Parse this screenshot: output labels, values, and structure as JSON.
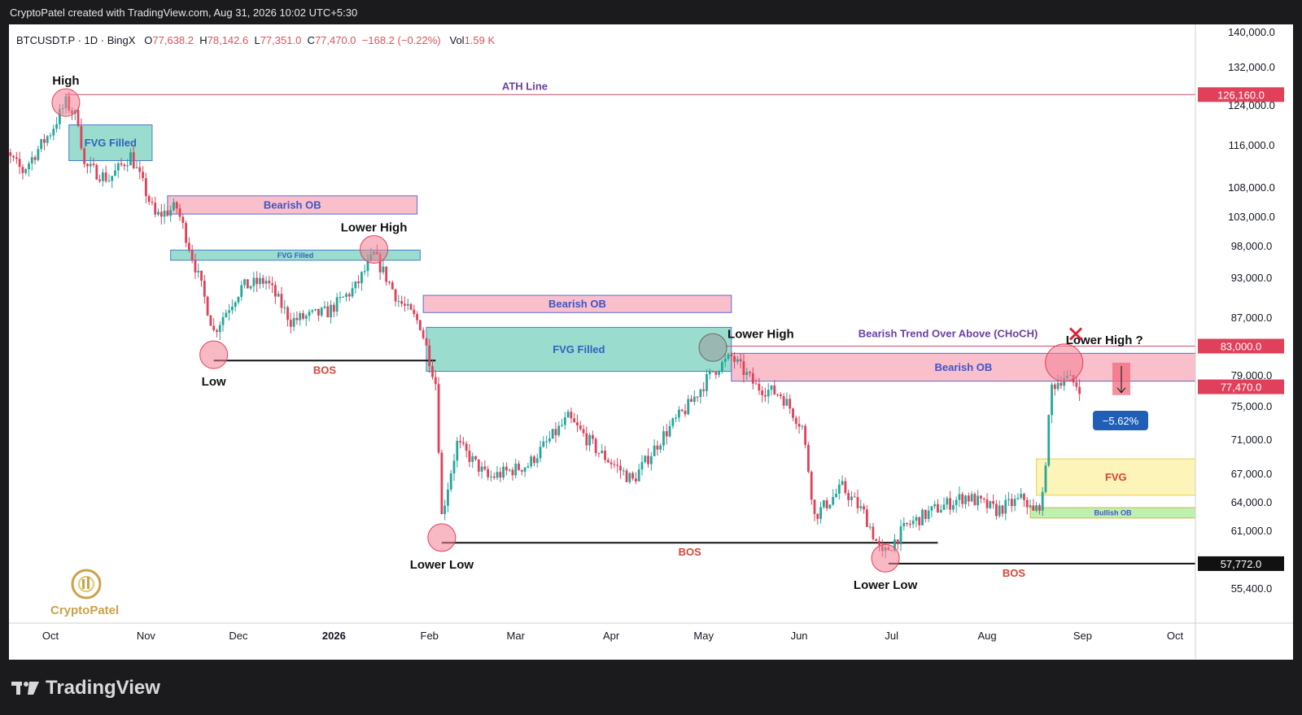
{
  "header": {
    "title": "CryptoPatel created with TradingView.com, Aug 31, 2026 10:02 UTC+5:30"
  },
  "legend": {
    "symbol": "BTCUSDT.P · 1D · BingX",
    "open_label": "O",
    "open": "77,638.2",
    "high_label": "H",
    "high": "78,142.6",
    "low_label": "L",
    "low": "77,351.0",
    "close_label": "C",
    "close": "77,470.0",
    "change": "−168.2 (−0.22%)",
    "vol_label": "Vol",
    "vol": "1.59 K"
  },
  "footer": {
    "brand": "TradingView"
  },
  "watermark": {
    "text": "CryptoPatel"
  },
  "colors": {
    "up": "#26a69a",
    "down": "#e0405a",
    "pink": "#f8b8c4",
    "teal": "#8fd8c8",
    "yellow": "#fcf3b0",
    "green": "#b6efa6",
    "purple": "#6b3fa0",
    "ath": "#d0506a"
  },
  "chart_data": {
    "type": "candlestick",
    "price_axis": {
      "ticks": [
        "140,000.0",
        "132,000.0",
        "124,000.0",
        "116,000.0",
        "108,000.0",
        "103,000.0",
        "98,000.0",
        "93,000.0",
        "87,000.0",
        "79,000.0",
        "75,000.0",
        "71,000.0",
        "67,000.0",
        "64,000.0",
        "61,000.0",
        "55,400.0"
      ],
      "tick_values": [
        140000,
        132000,
        124000,
        116000,
        108000,
        103000,
        98000,
        93000,
        87000,
        79000,
        75000,
        71000,
        67000,
        64000,
        61000,
        55400
      ],
      "price_labels": [
        {
          "text": "126,160.0",
          "value": 126160,
          "style": "red"
        },
        {
          "text": "83,000.0",
          "value": 83000,
          "style": "red"
        },
        {
          "text": "77,470.0",
          "value": 77470,
          "style": "red"
        },
        {
          "text": "57,772.0",
          "value": 57772,
          "style": "black"
        }
      ]
    },
    "time_axis": {
      "labels": [
        "Oct",
        "Nov",
        "Dec",
        "2026",
        "Feb",
        "Mar",
        "Apr",
        "May",
        "Jun",
        "Jul",
        "Aug",
        "Sep",
        "Oct"
      ],
      "dates": [
        "2025-10-01",
        "2025-11-01",
        "2025-12-01",
        "2026-01-01",
        "2026-02-01",
        "2026-03-01",
        "2026-04-01",
        "2026-05-01",
        "2026-06-01",
        "2026-07-01",
        "2026-08-01",
        "2026-09-01",
        "2026-10-01"
      ]
    },
    "price_path": [
      [
        "2025-09-12",
        117000
      ],
      [
        "2025-09-22",
        111000
      ],
      [
        "2025-10-01",
        118500
      ],
      [
        "2025-10-06",
        124500
      ],
      [
        "2025-10-10",
        121000
      ],
      [
        "2025-10-12",
        112000
      ],
      [
        "2025-10-20",
        109500
      ],
      [
        "2025-10-27",
        114000
      ],
      [
        "2025-11-04",
        103000
      ],
      [
        "2025-11-11",
        104500
      ],
      [
        "2025-11-19",
        91500
      ],
      [
        "2025-11-23",
        85000
      ],
      [
        "2025-12-02",
        91500
      ],
      [
        "2025-12-10",
        92500
      ],
      [
        "2025-12-18",
        86500
      ],
      [
        "2025-12-30",
        87800
      ],
      [
        "2026-01-08",
        91500
      ],
      [
        "2026-01-14",
        96500
      ],
      [
        "2026-01-22",
        89500
      ],
      [
        "2026-01-29",
        86000
      ],
      [
        "2026-02-03",
        78000
      ],
      [
        "2026-02-05",
        62500
      ],
      [
        "2026-02-10",
        70500
      ],
      [
        "2026-02-20",
        66500
      ],
      [
        "2026-03-05",
        68000
      ],
      [
        "2026-03-18",
        73500
      ],
      [
        "2026-03-28",
        69500
      ],
      [
        "2026-04-08",
        66200
      ],
      [
        "2026-04-18",
        71500
      ],
      [
        "2026-04-26",
        75000
      ],
      [
        "2026-05-04",
        79500
      ],
      [
        "2026-05-10",
        81500
      ],
      [
        "2026-05-18",
        77500
      ],
      [
        "2026-05-26",
        76500
      ],
      [
        "2026-06-02",
        72500
      ],
      [
        "2026-06-06",
        62500
      ],
      [
        "2026-06-15",
        65500
      ],
      [
        "2026-06-22",
        62800
      ],
      [
        "2026-06-28",
        58500
      ],
      [
        "2026-07-06",
        61500
      ],
      [
        "2026-07-15",
        63200
      ],
      [
        "2026-07-25",
        64600
      ],
      [
        "2026-08-04",
        63100
      ],
      [
        "2026-08-13",
        64400
      ],
      [
        "2026-08-16",
        62800
      ],
      [
        "2026-08-19",
        64300
      ],
      [
        "2026-08-22",
        77500
      ],
      [
        "2026-08-26",
        78800
      ],
      [
        "2026-08-31",
        77470
      ]
    ],
    "zones": [
      {
        "label": "FVG Filled",
        "kind": "teal",
        "from": "2025-10-07",
        "to": "2025-11-03",
        "top": 120000,
        "bottom": 113000
      },
      {
        "label": "Bearish OB",
        "kind": "pink",
        "from": "2025-11-08",
        "to": "2026-01-28",
        "top": 106500,
        "bottom": 103400
      },
      {
        "label": "FVG Filled",
        "kind": "teal",
        "from": "2025-11-09",
        "to": "2026-01-29",
        "top": 97300,
        "bottom": 95700
      },
      {
        "label": "Bearish OB",
        "kind": "pink",
        "from": "2026-01-30",
        "to": "2026-05-10",
        "top": 90300,
        "bottom": 87700
      },
      {
        "label": "FVG Filled",
        "kind": "teal",
        "from": "2026-01-31",
        "to": "2026-05-10",
        "top": 85600,
        "bottom": 79500
      },
      {
        "label": "Bearish OB",
        "kind": "pink",
        "from": "2026-05-10",
        "to": "2026-10-10",
        "top": 82000,
        "bottom": 78200
      },
      {
        "label": "FVG",
        "kind": "yellow",
        "from": "2026-08-17",
        "to": "2026-10-10",
        "top": 68700,
        "bottom": 64700
      },
      {
        "label": "Bullish OB",
        "kind": "green",
        "from": "2026-08-15",
        "to": "2026-10-10",
        "top": 63400,
        "bottom": 62300
      }
    ],
    "lines": [
      {
        "label": "ATH Line",
        "kind": "ath",
        "from": "2025-10-06",
        "to": "2026-10-10",
        "price": 126160
      },
      {
        "label": "BOS",
        "kind": "bos",
        "from": "2025-11-23",
        "to": "2026-02-03",
        "price": 81000
      },
      {
        "label": "BOS",
        "kind": "bos",
        "from": "2026-02-05",
        "to": "2026-07-16",
        "price": 59800
      },
      {
        "label": "BOS",
        "kind": "bos",
        "from": "2026-06-30",
        "to": "2026-10-10",
        "price": 57772
      }
    ],
    "swings": [
      {
        "label": "High",
        "date": "2025-10-06",
        "price": 124500,
        "pos": "above"
      },
      {
        "label": "Low",
        "date": "2025-11-23",
        "price": 81800,
        "pos": "below"
      },
      {
        "label": "Lower High",
        "date": "2026-01-14",
        "price": 97400,
        "pos": "above"
      },
      {
        "label": "Lower Low",
        "date": "2026-02-05",
        "price": 60300,
        "pos": "below"
      },
      {
        "label": "Lower High",
        "date": "2026-05-04",
        "price": 82800,
        "pos": "right"
      },
      {
        "label": "Lower Low",
        "date": "2026-06-29",
        "price": 58300,
        "pos": "below"
      },
      {
        "label": "Lower High ?",
        "date": "2026-08-26",
        "price": 80700,
        "pos": "above-right"
      }
    ],
    "annotations": {
      "choch": "Bearish Trend Over Above (CHoCH)",
      "pct_badge": "−5.62%"
    }
  }
}
